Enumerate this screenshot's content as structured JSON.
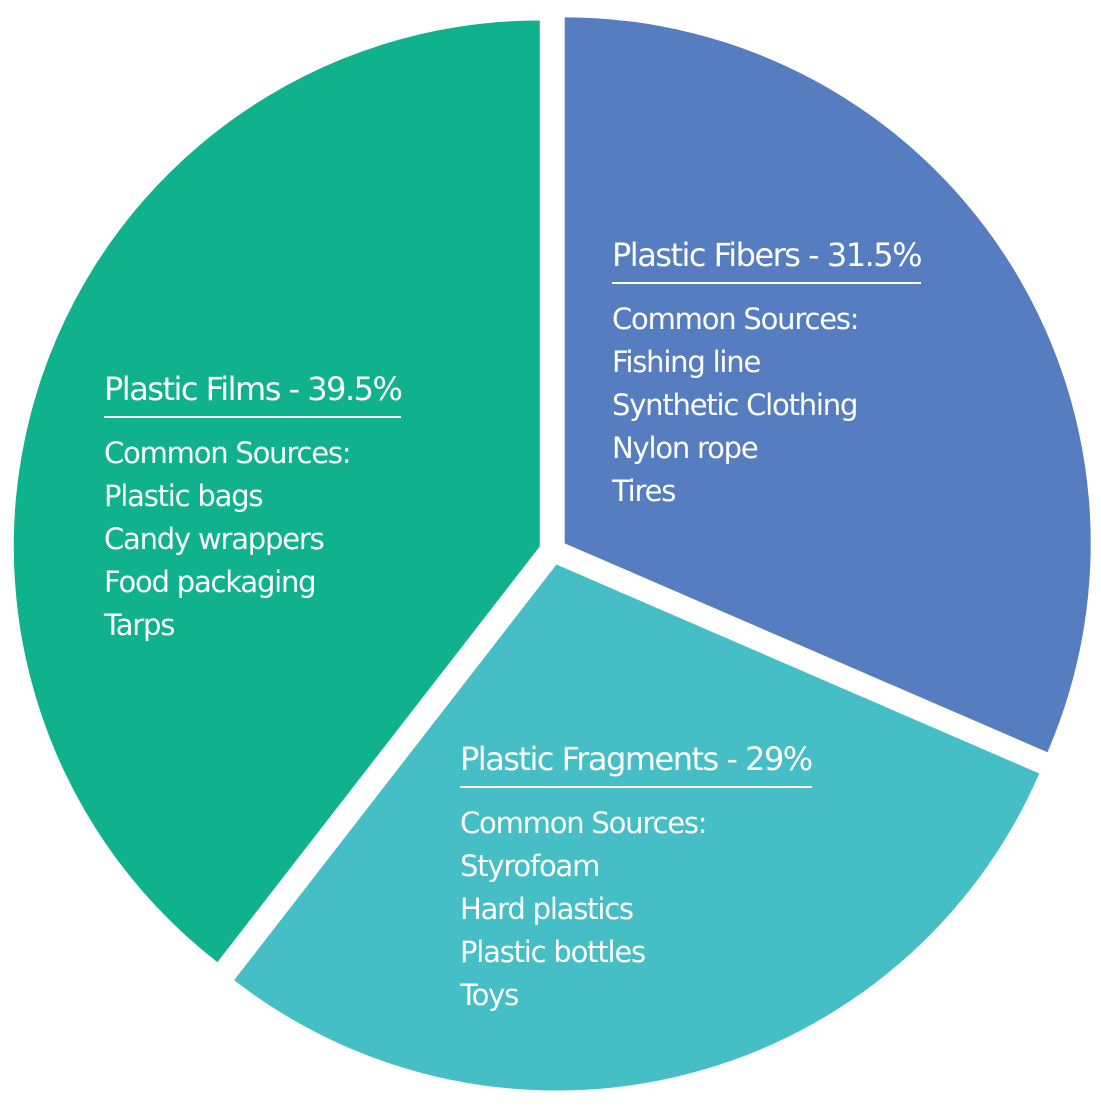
{
  "chart_data": {
    "type": "pie",
    "slices": [
      {
        "name": "Plastic Fibers",
        "value": 31.5,
        "title": "Plastic Fibers - 31.5%",
        "subtitle": "Common Sources:",
        "items": [
          "Fishing line",
          "Synthetic Clothing",
          "Nylon rope",
          "Tires"
        ],
        "color": "#567dbf"
      },
      {
        "name": "Plastic Fragments",
        "value": 29,
        "title": "Plastic Fragments - 29%",
        "subtitle": "Common Sources:",
        "items": [
          "Styrofoam",
          "Hard plastics",
          "Plastic bottles",
          "Toys"
        ],
        "color": "#45bec5"
      },
      {
        "name": "Plastic Films",
        "value": 39.5,
        "title": "Plastic Films - 39.5%",
        "subtitle": "Common Sources:",
        "items": [
          "Plastic bags",
          "Candy wrappers",
          "Food packaging",
          "Tarps"
        ],
        "color": "#10b18d"
      }
    ],
    "start_angle": "12 o'clock",
    "direction": "clockwise",
    "exploded": true,
    "legend": "none"
  }
}
